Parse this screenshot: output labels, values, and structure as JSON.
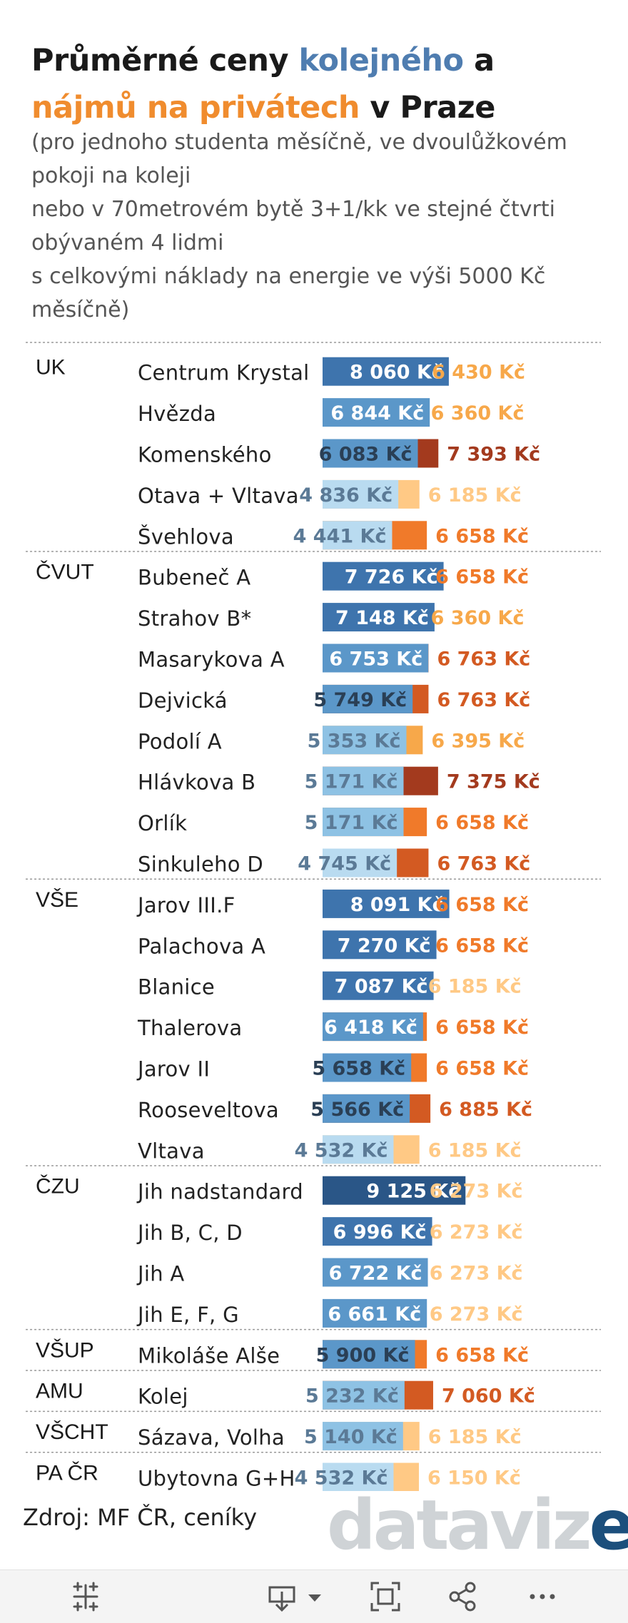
{
  "title": {
    "part1": "Průměrné ceny ",
    "part2": "kolejného",
    "part3": " a ",
    "part4": "nájmů na privátech",
    "part5": " v Praze"
  },
  "subtitle": "(pro jednoho studenta měsíčně, ve dvoulůžkovém\npokoji na koleji\nnebo v 70metrovém bytě 3+1/kk ve stejné čtvrti\nobývaném 4 lidmi\ns celkovými náklady na energie ve výši 5000 Kč\nměsíčně)",
  "source": "Zdroj: MF ČR, ceníky",
  "brand": {
    "main": "dataviz",
    "accent": "e",
    "dot": "."
  },
  "toolbar": {
    "icons": [
      "tableau-icon",
      "download-icon",
      "fullscreen-icon",
      "share-icon",
      "more-icon"
    ]
  },
  "chart_data": {
    "type": "bar",
    "title": "Průměrné ceny kolejného a nájmů na privátech v Praze",
    "currency": "Kč",
    "series": [
      {
        "name": "kolejné",
        "key": "dorm"
      },
      {
        "name": "nájem na privátu",
        "key": "rent"
      }
    ],
    "groups": [
      {
        "group": "UK",
        "rows": [
          {
            "name": "Centrum Krystal",
            "dorm": 8060,
            "rent": 6430
          },
          {
            "name": "Hvězda",
            "dorm": 6844,
            "rent": 6360
          },
          {
            "name": "Komenského",
            "dorm": 6083,
            "rent": 7393
          },
          {
            "name": "Otava + Vltava",
            "dorm": 4836,
            "rent": 6185
          },
          {
            "name": "Švehlova",
            "dorm": 4441,
            "rent": 6658
          }
        ]
      },
      {
        "group": "ČVUT",
        "rows": [
          {
            "name": "Bubeneč A",
            "dorm": 7726,
            "rent": 6658
          },
          {
            "name": "Strahov B*",
            "dorm": 7148,
            "rent": 6360
          },
          {
            "name": "Masarykova A",
            "dorm": 6753,
            "rent": 6763
          },
          {
            "name": "Dejvická",
            "dorm": 5749,
            "rent": 6763
          },
          {
            "name": "Podolí A",
            "dorm": 5353,
            "rent": 6395
          },
          {
            "name": "Hlávkova B",
            "dorm": 5171,
            "rent": 7375
          },
          {
            "name": "Orlík",
            "dorm": 5171,
            "rent": 6658
          },
          {
            "name": "Sinkuleho D",
            "dorm": 4745,
            "rent": 6763
          }
        ]
      },
      {
        "group": "VŠE",
        "rows": [
          {
            "name": "Jarov III.F",
            "dorm": 8091,
            "rent": 6658
          },
          {
            "name": "Palachova A",
            "dorm": 7270,
            "rent": 6658
          },
          {
            "name": "Blanice",
            "dorm": 7087,
            "rent": 6185
          },
          {
            "name": "Thalerova",
            "dorm": 6418,
            "rent": 6658
          },
          {
            "name": "Jarov II",
            "dorm": 5658,
            "rent": 6658
          },
          {
            "name": "Rooseveltova",
            "dorm": 5566,
            "rent": 6885
          },
          {
            "name": "Vltava",
            "dorm": 4532,
            "rent": 6185
          }
        ]
      },
      {
        "group": "ČZU",
        "rows": [
          {
            "name": "Jih nadstandard",
            "dorm": 9125,
            "rent": 6273
          },
          {
            "name": "Jih B, C, D",
            "dorm": 6996,
            "rent": 6273
          },
          {
            "name": "Jih A",
            "dorm": 6722,
            "rent": 6273
          },
          {
            "name": "Jih E, F, G",
            "dorm": 6661,
            "rent": 6273
          }
        ]
      },
      {
        "group": "VŠUP",
        "rows": [
          {
            "name": "Mikoláše Alše",
            "dorm": 5900,
            "rent": 6658
          }
        ]
      },
      {
        "group": "AMU",
        "rows": [
          {
            "name": "Kolej",
            "dorm": 5232,
            "rent": 7060
          }
        ]
      },
      {
        "group": "VŠCHT",
        "rows": [
          {
            "name": "Sázava, Volha",
            "dorm": 5140,
            "rent": 6185
          }
        ]
      },
      {
        "group": "PA ČR",
        "rows": [
          {
            "name": "Ubytovna G+H",
            "dorm": 4532,
            "rent": 6150
          }
        ]
      }
    ]
  },
  "colors": {
    "title_blue": "#4f7db0",
    "title_orange": "#f08c2e",
    "dorm_scale": [
      "#b9dbf0",
      "#8ec2e4",
      "#5b97c9",
      "#3e74ad",
      "#2a5687"
    ],
    "rent_scale": [
      "#ffc985",
      "#f7a84a",
      "#f07a2a",
      "#d35a22",
      "#a33a1e"
    ]
  }
}
